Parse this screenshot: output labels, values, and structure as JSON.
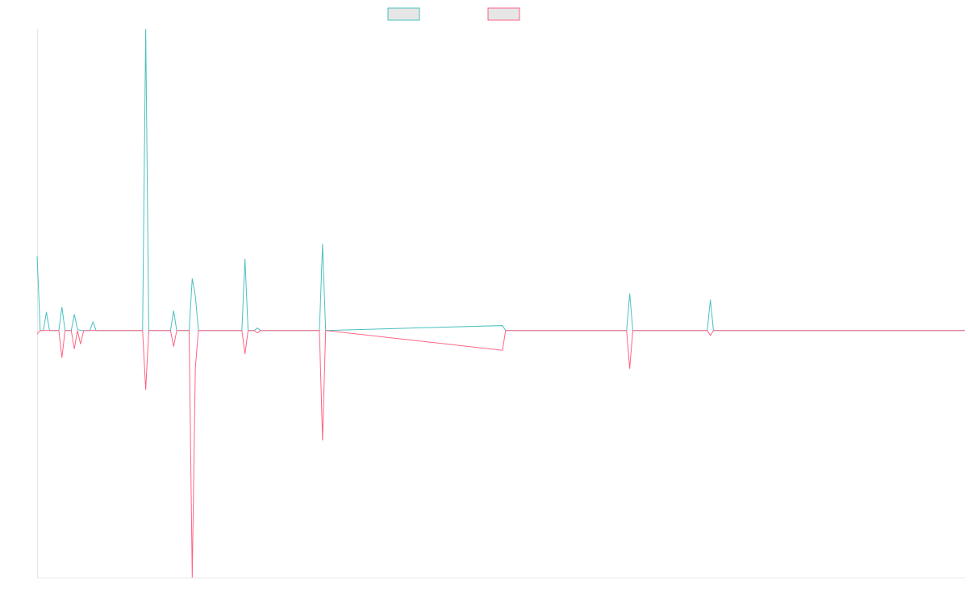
{
  "chart_data": {
    "type": "line",
    "title": "",
    "xlabel": "",
    "ylabel": "",
    "grid": false,
    "legend_placement": "top-center",
    "ylim": [
      -100,
      122
    ],
    "xlim": [
      0,
      299
    ],
    "colors": {
      "teal": "#4bc0c0",
      "pink": "#ff6384",
      "swatch_fill": "#e6e6e6",
      "axis": "#e5e5e5"
    },
    "series": [
      {
        "color": "#4bc0c0",
        "points": [
          [
            0,
            30
          ],
          [
            1,
            0
          ],
          [
            2,
            0
          ],
          [
            3,
            7.5
          ],
          [
            4,
            0
          ],
          [
            5,
            0
          ],
          [
            6,
            0
          ],
          [
            7,
            0
          ],
          [
            8,
            9.5
          ],
          [
            9,
            0
          ],
          [
            10,
            0
          ],
          [
            11,
            0
          ],
          [
            12,
            6.5
          ],
          [
            13,
            0.5
          ],
          [
            14,
            0
          ],
          [
            15,
            0
          ],
          [
            16,
            0
          ],
          [
            17,
            0
          ],
          [
            18,
            3.5
          ],
          [
            19,
            0
          ],
          [
            20,
            0
          ],
          [
            21,
            0
          ],
          [
            22,
            0
          ],
          [
            23,
            0
          ],
          [
            24,
            0
          ],
          [
            25,
            0
          ],
          [
            26,
            0
          ],
          [
            27,
            0
          ],
          [
            28,
            0
          ],
          [
            29,
            0
          ],
          [
            30,
            0
          ],
          [
            31,
            0
          ],
          [
            32,
            0
          ],
          [
            33,
            0
          ],
          [
            34,
            0
          ],
          [
            35,
            122
          ],
          [
            36,
            0
          ],
          [
            37,
            0
          ],
          [
            38,
            0
          ],
          [
            39,
            0
          ],
          [
            40,
            0
          ],
          [
            41,
            0
          ],
          [
            42,
            0
          ],
          [
            43,
            0
          ],
          [
            44,
            8
          ],
          [
            45,
            0
          ],
          [
            46,
            0
          ],
          [
            47,
            0
          ],
          [
            48,
            0
          ],
          [
            49,
            0
          ],
          [
            50,
            21
          ],
          [
            51,
            14
          ],
          [
            52,
            0
          ],
          [
            53,
            0
          ],
          [
            54,
            0
          ],
          [
            55,
            0
          ],
          [
            56,
            0
          ],
          [
            57,
            0
          ],
          [
            58,
            0
          ],
          [
            59,
            0
          ],
          [
            60,
            0
          ],
          [
            61,
            0
          ],
          [
            62,
            0
          ],
          [
            63,
            0
          ],
          [
            64,
            0
          ],
          [
            65,
            0
          ],
          [
            66,
            0
          ],
          [
            67,
            29
          ],
          [
            68,
            0
          ],
          [
            69,
            0
          ],
          [
            70,
            0
          ],
          [
            71,
            1
          ],
          [
            72,
            0
          ],
          [
            73,
            0
          ],
          [
            74,
            0
          ],
          [
            75,
            0
          ],
          [
            76,
            0
          ],
          [
            77,
            0
          ],
          [
            78,
            0
          ],
          [
            79,
            0
          ],
          [
            80,
            0
          ],
          [
            81,
            0
          ],
          [
            82,
            0
          ],
          [
            83,
            0
          ],
          [
            84,
            0
          ],
          [
            85,
            0
          ],
          [
            86,
            0
          ],
          [
            87,
            0
          ],
          [
            88,
            0
          ],
          [
            89,
            0
          ],
          [
            90,
            0
          ],
          [
            91,
            0
          ],
          [
            92,
            35
          ],
          [
            93,
            0
          ],
          [
            150,
            2
          ],
          [
            151,
            0
          ],
          [
            190,
            0
          ],
          [
            191,
            15
          ],
          [
            192,
            0
          ],
          [
            216,
            0
          ],
          [
            217,
            12.5
          ],
          [
            218,
            0
          ],
          [
            299,
            0
          ]
        ]
      },
      {
        "color": "#ff6384",
        "points": [
          [
            0,
            -1.5
          ],
          [
            1,
            0
          ],
          [
            2,
            0
          ],
          [
            3,
            0
          ],
          [
            4,
            0
          ],
          [
            5,
            0
          ],
          [
            6,
            0
          ],
          [
            7,
            0
          ],
          [
            8,
            -11
          ],
          [
            9,
            0
          ],
          [
            10,
            0
          ],
          [
            11,
            0
          ],
          [
            12,
            -7.5
          ],
          [
            13,
            0
          ],
          [
            14,
            -5.5
          ],
          [
            15,
            0
          ],
          [
            16,
            0
          ],
          [
            17,
            0
          ],
          [
            18,
            0
          ],
          [
            19,
            0
          ],
          [
            20,
            0
          ],
          [
            21,
            0
          ],
          [
            22,
            0
          ],
          [
            23,
            0
          ],
          [
            24,
            0
          ],
          [
            25,
            0
          ],
          [
            26,
            0
          ],
          [
            27,
            0
          ],
          [
            28,
            0
          ],
          [
            29,
            0
          ],
          [
            30,
            0
          ],
          [
            31,
            0
          ],
          [
            32,
            0
          ],
          [
            33,
            0
          ],
          [
            34,
            0
          ],
          [
            35,
            -24
          ],
          [
            36,
            0
          ],
          [
            37,
            0
          ],
          [
            38,
            0
          ],
          [
            39,
            0
          ],
          [
            40,
            0
          ],
          [
            41,
            0
          ],
          [
            42,
            0
          ],
          [
            43,
            0
          ],
          [
            44,
            -6.5
          ],
          [
            45,
            0
          ],
          [
            46,
            0
          ],
          [
            47,
            0
          ],
          [
            48,
            0
          ],
          [
            49,
            0
          ],
          [
            50,
            -100
          ],
          [
            51,
            -15
          ],
          [
            52,
            0
          ],
          [
            53,
            0
          ],
          [
            54,
            0
          ],
          [
            55,
            0
          ],
          [
            56,
            0
          ],
          [
            57,
            0
          ],
          [
            58,
            0
          ],
          [
            59,
            0
          ],
          [
            60,
            0
          ],
          [
            61,
            0
          ],
          [
            62,
            0
          ],
          [
            63,
            0
          ],
          [
            64,
            0
          ],
          [
            65,
            0
          ],
          [
            66,
            0
          ],
          [
            67,
            -9.5
          ],
          [
            68,
            0
          ],
          [
            69,
            0
          ],
          [
            70,
            0
          ],
          [
            71,
            -1
          ],
          [
            72,
            0
          ],
          [
            73,
            0
          ],
          [
            74,
            0
          ],
          [
            75,
            0
          ],
          [
            76,
            0
          ],
          [
            77,
            0
          ],
          [
            78,
            0
          ],
          [
            79,
            0
          ],
          [
            80,
            0
          ],
          [
            81,
            0
          ],
          [
            82,
            0
          ],
          [
            83,
            0
          ],
          [
            84,
            0
          ],
          [
            85,
            0
          ],
          [
            86,
            0
          ],
          [
            87,
            0
          ],
          [
            88,
            0
          ],
          [
            89,
            0
          ],
          [
            90,
            0
          ],
          [
            91,
            0
          ],
          [
            92,
            -44.5
          ],
          [
            93,
            0
          ],
          [
            150,
            -8
          ],
          [
            151,
            0
          ],
          [
            190,
            0
          ],
          [
            191,
            -15.5
          ],
          [
            192,
            0
          ],
          [
            216,
            0
          ],
          [
            217,
            -2
          ],
          [
            218,
            0
          ],
          [
            299,
            0
          ]
        ]
      }
    ]
  }
}
